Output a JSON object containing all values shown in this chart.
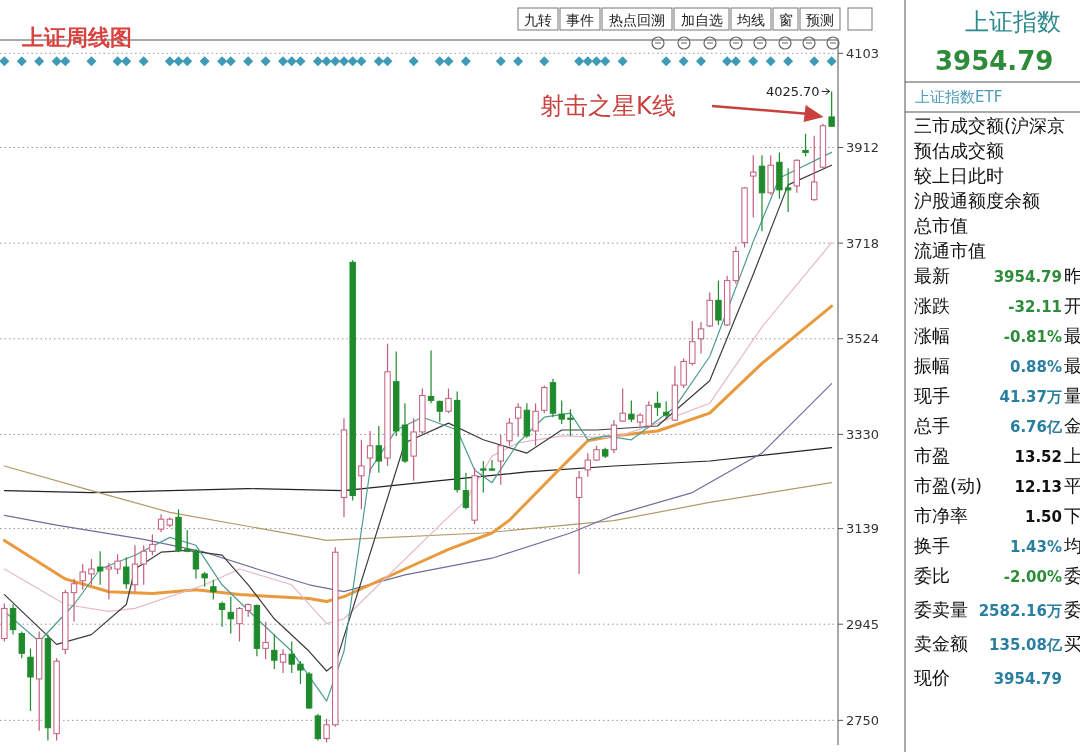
{
  "chart_data": [
    {
      "type": "candlestick",
      "title": "上证周线图",
      "categories": [
        null,
        null,
        null,
        null,
        null,
        null,
        null,
        null,
        null,
        null,
        null,
        null,
        null,
        null,
        null,
        null,
        null,
        null,
        null,
        null,
        null,
        null,
        null,
        null,
        null,
        null,
        null,
        null,
        null,
        null,
        null,
        null,
        null,
        null,
        null,
        null,
        null,
        null,
        null,
        null,
        null,
        null,
        null,
        null,
        null,
        null,
        null,
        null,
        null,
        null,
        null,
        null,
        null,
        null,
        null,
        null,
        null,
        null,
        null,
        null,
        null,
        null,
        null,
        null,
        null,
        null,
        null,
        null,
        null,
        null,
        null,
        null,
        null,
        null,
        null,
        null,
        null,
        null,
        null,
        null,
        null,
        null,
        null,
        null,
        null,
        null,
        null,
        null,
        null,
        null,
        null,
        null,
        null,
        null,
        null,
        null
      ],
      "ohlc": [
        [
          2916,
          2987,
          2910,
          2977
        ],
        [
          2977,
          2985,
          2924,
          2934
        ],
        [
          2926,
          2930,
          2876,
          2886
        ],
        [
          2878,
          2896,
          2769,
          2838
        ],
        [
          2834,
          2930,
          2729,
          2916
        ],
        [
          2916,
          2924,
          2709,
          2735
        ],
        [
          2723,
          2876,
          2709,
          2870
        ],
        [
          2894,
          3015,
          2884,
          3009
        ],
        [
          3009,
          3037,
          2950,
          3027
        ],
        [
          3033,
          3067,
          3015,
          3051
        ],
        [
          3047,
          3077,
          3025,
          3057
        ],
        [
          3061,
          3093,
          3025,
          3053
        ],
        [
          3057,
          3069,
          2995,
          3061
        ],
        [
          3057,
          3087,
          3047,
          3073
        ],
        [
          3061,
          3081,
          3017,
          3027
        ],
        [
          3025,
          3105,
          3011,
          3067
        ],
        [
          3067,
          3105,
          3025,
          3093
        ],
        [
          3093,
          3127,
          3085,
          3107
        ],
        [
          3138,
          3168,
          3132,
          3158
        ],
        [
          3146,
          3162,
          3142,
          3158
        ],
        [
          3162,
          3178,
          3091,
          3095
        ],
        [
          3097,
          3136,
          3091,
          3093
        ],
        [
          3093,
          3097,
          3037,
          3057
        ],
        [
          3047,
          3051,
          3021,
          3039
        ],
        [
          3021,
          3035,
          2995,
          3011
        ],
        [
          2987,
          2991,
          2940,
          2975
        ],
        [
          2969,
          3001,
          2926,
          2956
        ],
        [
          2946,
          2980,
          2910,
          2977
        ],
        [
          2973,
          2987,
          2960,
          2985
        ],
        [
          2983,
          2985,
          2880,
          2896
        ],
        [
          2896,
          2950,
          2874,
          2908
        ],
        [
          2892,
          2924,
          2854,
          2872
        ],
        [
          2868,
          2894,
          2846,
          2884
        ],
        [
          2884,
          2910,
          2846,
          2864
        ],
        [
          2864,
          2870,
          2824,
          2852
        ],
        [
          2844,
          2848,
          2773,
          2775
        ],
        [
          2759,
          2763,
          2709,
          2713
        ],
        [
          2713,
          2753,
          2705,
          2741
        ],
        [
          2741,
          3101,
          2737,
          3091
        ],
        [
          3202,
          3363,
          3162,
          3339
        ],
        [
          3679,
          3683,
          3196,
          3206
        ],
        [
          3246,
          3319,
          3178,
          3266
        ],
        [
          3282,
          3337,
          3252,
          3307
        ],
        [
          3307,
          3347,
          3252,
          3276
        ],
        [
          3282,
          3514,
          3266,
          3457
        ],
        [
          3437,
          3498,
          3327,
          3337
        ],
        [
          3349,
          3393,
          3272,
          3276
        ],
        [
          3286,
          3363,
          3236,
          3335
        ],
        [
          3335,
          3423,
          3331,
          3409
        ],
        [
          3407,
          3500,
          3393,
          3399
        ],
        [
          3397,
          3399,
          3355,
          3377
        ],
        [
          3377,
          3423,
          3373,
          3403
        ],
        [
          3399,
          3417,
          3212,
          3218
        ],
        [
          3216,
          3252,
          3178,
          3182
        ],
        [
          3156,
          3262,
          3148,
          3246
        ],
        [
          3260,
          3276,
          3212,
          3258
        ],
        [
          3260,
          3278,
          3256,
          3258
        ],
        [
          3276,
          3329,
          3228,
          3307
        ],
        [
          3317,
          3363,
          3307,
          3353
        ],
        [
          3363,
          3393,
          3325,
          3385
        ],
        [
          3379,
          3393,
          3323,
          3327
        ],
        [
          3337,
          3393,
          3307,
          3377
        ],
        [
          3379,
          3429,
          3373,
          3425
        ],
        [
          3435,
          3443,
          3365,
          3373
        ],
        [
          3371,
          3399,
          3351,
          3361
        ],
        [
          3363,
          3381,
          3327,
          3361
        ],
        [
          3202,
          3256,
          3047,
          3242
        ],
        [
          3258,
          3292,
          3244,
          3278
        ],
        [
          3278,
          3307,
          3276,
          3299
        ],
        [
          3299,
          3303,
          3282,
          3286
        ],
        [
          3299,
          3359,
          3292,
          3349
        ],
        [
          3357,
          3423,
          3355,
          3373
        ],
        [
          3371,
          3399,
          3355,
          3361
        ],
        [
          3355,
          3373,
          3347,
          3369
        ],
        [
          3347,
          3397,
          3343,
          3389
        ],
        [
          3393,
          3417,
          3367,
          3385
        ],
        [
          3375,
          3397,
          3363,
          3369
        ],
        [
          3359,
          3468,
          3357,
          3430
        ],
        [
          3430,
          3484,
          3424,
          3478
        ],
        [
          3474,
          3560,
          3470,
          3518
        ],
        [
          3524,
          3558,
          3494,
          3544
        ],
        [
          3550,
          3618,
          3548,
          3602
        ],
        [
          3602,
          3642,
          3552,
          3562
        ],
        [
          3552,
          3652,
          3550,
          3642
        ],
        [
          3642,
          3711,
          3636,
          3701
        ],
        [
          3719,
          3832,
          3709,
          3830
        ],
        [
          3854,
          3896,
          3770,
          3862
        ],
        [
          3874,
          3896,
          3742,
          3820
        ],
        [
          3820,
          3896,
          3816,
          3876
        ],
        [
          3882,
          3902,
          3808,
          3826
        ],
        [
          3830,
          3870,
          3781,
          3826
        ],
        [
          3834,
          3888,
          3820,
          3886
        ],
        [
          3906,
          3940,
          3894,
          3902
        ],
        [
          3806,
          3936,
          3804,
          3842
        ],
        [
          3872,
          3960,
          3870,
          3956
        ],
        [
          3974,
          4025.7,
          3955,
          3955
        ]
      ],
      "series": [
        {
          "type": "line",
          "color": "#222222",
          "values": [
            3216,
            null,
            null,
            null,
            null,
            null,
            null,
            null,
            null,
            null,
            3212,
            null,
            null,
            null,
            null,
            null,
            null,
            null,
            null,
            null,
            null,
            null,
            null,
            null,
            null,
            null,
            null,
            null,
            3220,
            null,
            null,
            null,
            null,
            null,
            null,
            null,
            null,
            null,
            null,
            3216,
            null,
            null,
            null,
            null,
            null,
            null,
            null,
            null,
            null,
            null,
            3236,
            null,
            null,
            null,
            null,
            null,
            null,
            null,
            null,
            null,
            3254,
            null,
            null,
            null,
            null,
            null,
            null,
            null,
            null,
            null,
            3266,
            null,
            null,
            null,
            null,
            null,
            null,
            null,
            null,
            null,
            null,
            3276,
            null,
            null,
            null,
            null,
            null,
            null,
            null,
            null,
            null,
            null,
            null,
            null,
            null,
            3303
          ]
        },
        {
          "type": "line",
          "color": "#b09a68",
          "values": [
            3266,
            null,
            null,
            null,
            null,
            null,
            null,
            null,
            null,
            null,
            3216,
            null,
            null,
            null,
            null,
            null,
            null,
            null,
            null,
            3172,
            null,
            null,
            null,
            null,
            null,
            null,
            null,
            null,
            null,
            null,
            null,
            null,
            null,
            null,
            null,
            null,
            null,
            3115,
            null,
            null,
            null,
            null,
            null,
            null,
            null,
            null,
            null,
            null,
            null,
            null,
            null,
            null,
            null,
            null,
            null,
            3130,
            null,
            null,
            null,
            null,
            null,
            null,
            null,
            null,
            null,
            null,
            null,
            null,
            null,
            null,
            3155,
            null,
            null,
            null,
            null,
            null,
            null,
            null,
            null,
            null,
            null,
            3192,
            null,
            null,
            null,
            null,
            null,
            null,
            null,
            null,
            null,
            null,
            null,
            null,
            null,
            3232
          ]
        },
        {
          "type": "line",
          "color": "#6e6e9c",
          "values": [
            3166,
            null,
            null,
            null,
            null,
            null,
            3146,
            null,
            null,
            null,
            null,
            null,
            null,
            null,
            null,
            null,
            3117,
            null,
            null,
            null,
            null,
            null,
            null,
            3091,
            null,
            null,
            null,
            null,
            null,
            3057,
            null,
            null,
            null,
            null,
            null,
            3025,
            null,
            null,
            null,
            3011,
            null,
            null,
            null,
            null,
            null,
            null,
            3045,
            null,
            null,
            null,
            null,
            null,
            null,
            null,
            null,
            null,
            3079,
            null,
            null,
            null,
            null,
            null,
            null,
            null,
            null,
            3130,
            null,
            null,
            null,
            null,
            3166,
            null,
            null,
            null,
            null,
            null,
            null,
            null,
            null,
            3212,
            null,
            null,
            null,
            null,
            null,
            null,
            null,
            3292,
            null,
            null,
            null,
            null,
            null,
            null,
            null,
            3433
          ]
        },
        {
          "type": "line",
          "color": "#e89a3c",
          "values": [
            3115,
            null,
            null,
            null,
            null,
            null,
            null,
            3037,
            null,
            null,
            null,
            null,
            3011,
            null,
            null,
            null,
            null,
            3007,
            null,
            null,
            null,
            null,
            3015,
            null,
            null,
            null,
            null,
            3005,
            null,
            null,
            null,
            null,
            null,
            null,
            null,
            2997,
            null,
            2991,
            null,
            3001,
            null,
            null,
            null,
            null,
            null,
            null,
            3057,
            null,
            null,
            null,
            null,
            3097,
            null,
            null,
            null,
            null,
            3130,
            null,
            3156,
            null,
            null,
            null,
            null,
            3246,
            null,
            null,
            null,
            3317,
            null,
            null,
            3327,
            null,
            null,
            null,
            null,
            3337,
            null,
            null,
            null,
            null,
            null,
            3373,
            null,
            null,
            null,
            null,
            null,
            3474,
            null,
            null,
            null,
            null,
            null,
            null,
            null,
            3590
          ]
        },
        {
          "type": "line",
          "color": "#e6b8cc",
          "values": [
            3057,
            null,
            null,
            null,
            null,
            null,
            null,
            2985,
            null,
            null,
            null,
            null,
            2971,
            null,
            null,
            2977,
            null,
            null,
            null,
            null,
            null,
            null,
            null,
            3025,
            null,
            null,
            null,
            3057,
            null,
            null,
            null,
            null,
            null,
            3025,
            null,
            null,
            null,
            2946,
            null,
            2956,
            null,
            null,
            null,
            null,
            null,
            null,
            null,
            null,
            null,
            null,
            3146,
            null,
            null,
            3196,
            null,
            null,
            3286,
            null,
            null,
            3313,
            null,
            null,
            null,
            null,
            3327,
            null,
            null,
            null,
            null,
            null,
            3323,
            null,
            null,
            null,
            null,
            3353,
            null,
            null,
            null,
            null,
            null,
            3393,
            null,
            null,
            null,
            null,
            null,
            3548,
            null,
            null,
            null,
            null,
            null,
            null,
            null,
            3719
          ]
        },
        {
          "type": "line",
          "color": "#3c3c3c",
          "values": [
            3005,
            null,
            null,
            null,
            null,
            null,
            2904,
            null,
            null,
            null,
            2924,
            null,
            null,
            null,
            2985,
            3057,
            null,
            null,
            3091,
            null,
            null,
            3095,
            null,
            null,
            null,
            3085,
            null,
            null,
            3025,
            null,
            null,
            2956,
            null,
            null,
            null,
            2890,
            null,
            2850,
            2864,
            null,
            null,
            null,
            null,
            null,
            null,
            null,
            3313,
            null,
            null,
            null,
            null,
            3353,
            null,
            null,
            null,
            3319,
            null,
            null,
            null,
            null,
            3292,
            null,
            null,
            null,
            3339,
            null,
            null,
            null,
            3339,
            null,
            null,
            null,
            null,
            null,
            null,
            3347,
            null,
            null,
            null,
            null,
            null,
            3439,
            null,
            null,
            null,
            null,
            3655,
            null,
            null,
            null,
            3836,
            null,
            null,
            null,
            null,
            3876
          ]
        },
        {
          "type": "line",
          "color": "#4f9c92",
          "values": [
            2971,
            null,
            null,
            null,
            2910,
            null,
            null,
            null,
            2985,
            null,
            null,
            3057,
            null,
            null,
            null,
            3085,
            null,
            null,
            null,
            3121,
            null,
            null,
            3105,
            null,
            null,
            3025,
            null,
            null,
            null,
            2956,
            null,
            null,
            null,
            2890,
            null,
            null,
            null,
            2789,
            null,
            2890,
            null,
            null,
            3258,
            null,
            null,
            3339,
            null,
            null,
            3365,
            null,
            null,
            null,
            3339,
            null,
            3258,
            null,
            3232,
            null,
            null,
            3313,
            null,
            null,
            3365,
            null,
            null,
            3373,
            null,
            3319,
            null,
            3327,
            null,
            null,
            3319,
            null,
            null,
            null,
            null,
            3385,
            null,
            null,
            null,
            3488,
            null,
            null,
            null,
            null,
            3721,
            null,
            null,
            3850,
            null,
            null,
            null,
            null,
            null,
            3902
          ]
        },
        {
          "type": "scatter",
          "marker": "diamond",
          "color": "#3f9ab5",
          "values": [
            4087,
            null,
            4087,
            null,
            4087,
            null,
            4087,
            4087,
            null,
            null,
            4087,
            null,
            null,
            4087,
            4087,
            null,
            4087,
            null,
            null,
            4087,
            4087,
            4087,
            null,
            4087,
            null,
            4087,
            4087,
            null,
            4087,
            null,
            4087,
            null,
            4087,
            4087,
            4087,
            null,
            4087,
            4087,
            4087,
            4087,
            4087,
            4087,
            null,
            4087,
            4087,
            null,
            null,
            4087,
            null,
            null,
            4087,
            4087,
            null,
            4087,
            null,
            null,
            null,
            4087,
            null,
            4087,
            null,
            null,
            4087,
            null,
            null,
            null,
            4087,
            4087,
            4087,
            4087,
            null,
            4087,
            null,
            null,
            null,
            null,
            4087,
            null,
            4087,
            null,
            4087,
            null,
            null,
            4087,
            4087,
            null,
            4087,
            null,
            4087,
            null,
            4087,
            null,
            null,
            4087,
            null,
            4087
          ]
        }
      ],
      "ylim": [
        2700,
        4130
      ],
      "yticks": [
        4103,
        3912,
        3718,
        3524,
        3330,
        3139,
        2945,
        2750
      ],
      "grid": "y",
      "tick_labels": "y",
      "annotations": [
        "4025.70",
        "射击之星K线",
        "九转",
        "事件",
        "热点回溯",
        "加自选",
        "均线",
        "窗",
        "预测"
      ]
    },
    {
      "type": "other",
      "title": "上证指数",
      "subtitle": "3954.79",
      "annotations": [
        "上证指数ETF"
      ],
      "categories": [
        "三市成交额(沪深京",
        "预估成交额",
        "较上日此时",
        "沪股通额度余额",
        "总市值",
        "流通市值",
        "最新",
        "涨跌",
        "涨幅",
        "振幅",
        "现手",
        "总手",
        "市盈",
        "市盈(动)",
        "市净率",
        "换手",
        "委比",
        "委卖量",
        "卖金额",
        "现价"
      ],
      "value_labels": [
        null,
        null,
        null,
        null,
        null,
        null,
        "3954.79",
        "-32.11",
        "-0.81%",
        "0.88%",
        "41.37万",
        "6.76亿",
        "13.52",
        "12.13",
        "1.50",
        "1.43%",
        "-2.00%",
        "2582.16万",
        "135.08亿",
        "3954.79"
      ],
      "y2_categories": [
        null,
        null,
        null,
        null,
        null,
        null,
        "昨",
        "开",
        "最",
        "最",
        "量",
        "金",
        "上",
        "平",
        "下",
        "均",
        "委",
        "委",
        "买",
        null
      ]
    }
  ]
}
